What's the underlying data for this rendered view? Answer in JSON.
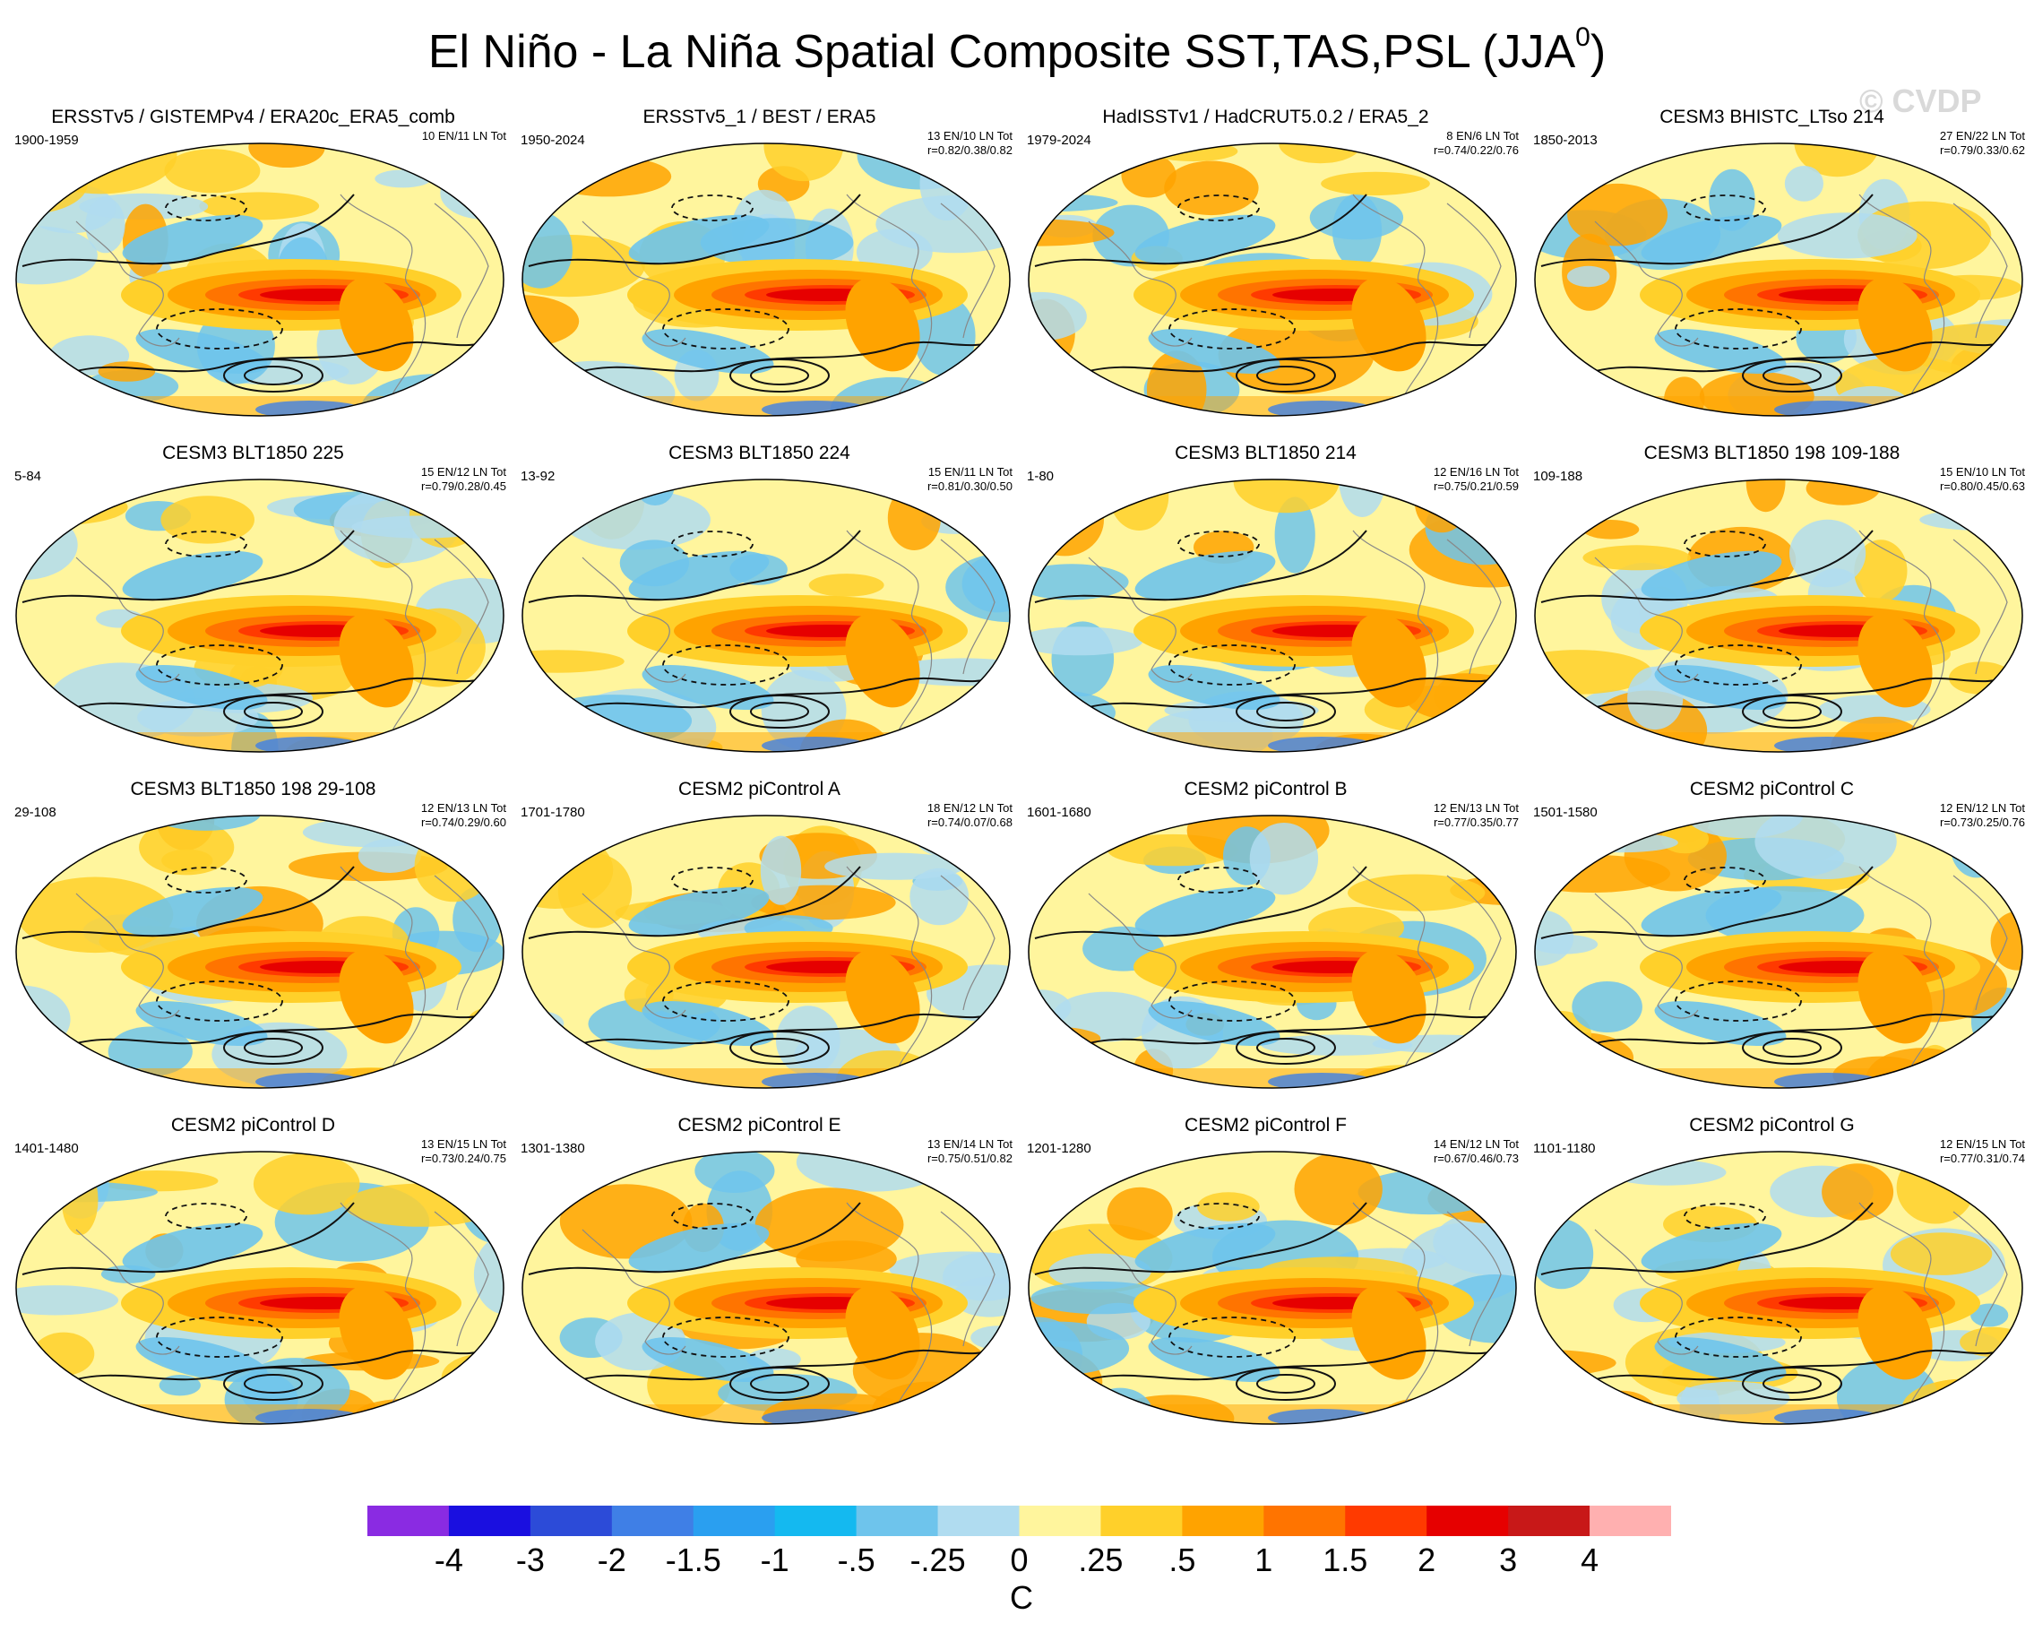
{
  "title_main": "El Niño - La Niña Spatial Composite SST,TAS,PSL (JJA",
  "title_sup": "0",
  "title_close": ")",
  "watermark": "© CVDP",
  "panels": [
    {
      "title": "ERSSTv5 / GISTEMPv4 / ERA20c_ERA5_comb",
      "years": "1900-1959",
      "counts": "10 EN/11 LN Tot",
      "r": ""
    },
    {
      "title": "ERSSTv5_1 / BEST / ERA5",
      "years": "1950-2024",
      "counts": "13 EN/10 LN Tot",
      "r": "r=0.82/0.38/0.82"
    },
    {
      "title": "HadISSTv1 / HadCRUT5.0.2 / ERA5_2",
      "years": "1979-2024",
      "counts": "8 EN/6 LN Tot",
      "r": "r=0.74/0.22/0.76"
    },
    {
      "title": "CESM3 BHISTC_LTso 214",
      "years": "1850-2013",
      "counts": "27 EN/22 LN Tot",
      "r": "r=0.79/0.33/0.62"
    },
    {
      "title": "CESM3 BLT1850 225",
      "years": "5-84",
      "counts": "15 EN/12 LN Tot",
      "r": "r=0.79/0.28/0.45"
    },
    {
      "title": "CESM3 BLT1850 224",
      "years": "13-92",
      "counts": "15 EN/11 LN Tot",
      "r": "r=0.81/0.30/0.50"
    },
    {
      "title": "CESM3 BLT1850 214",
      "years": "1-80",
      "counts": "12 EN/16 LN Tot",
      "r": "r=0.75/0.21/0.59"
    },
    {
      "title": "CESM3 BLT1850 198 109-188",
      "years": "109-188",
      "counts": "15 EN/10 LN Tot",
      "r": "r=0.80/0.45/0.63"
    },
    {
      "title": "CESM3 BLT1850 198 29-108",
      "years": "29-108",
      "counts": "12 EN/13 LN Tot",
      "r": "r=0.74/0.29/0.60"
    },
    {
      "title": "CESM2 piControl A",
      "years": "1701-1780",
      "counts": "18 EN/12 LN Tot",
      "r": "r=0.74/0.07/0.68"
    },
    {
      "title": "CESM2 piControl B",
      "years": "1601-1680",
      "counts": "12 EN/13 LN Tot",
      "r": "r=0.77/0.35/0.77"
    },
    {
      "title": "CESM2 piControl C",
      "years": "1501-1580",
      "counts": "12 EN/12 LN Tot",
      "r": "r=0.73/0.25/0.76"
    },
    {
      "title": "CESM2 piControl D",
      "years": "1401-1480",
      "counts": "13 EN/15 LN Tot",
      "r": "r=0.73/0.24/0.75"
    },
    {
      "title": "CESM2 piControl E",
      "years": "1301-1380",
      "counts": "13 EN/14 LN Tot",
      "r": "r=0.75/0.51/0.82"
    },
    {
      "title": "CESM2 piControl F",
      "years": "1201-1280",
      "counts": "14 EN/12 LN Tot",
      "r": "r=0.67/0.46/0.73"
    },
    {
      "title": "CESM2 piControl G",
      "years": "1101-1180",
      "counts": "12 EN/15 LN Tot",
      "r": "r=0.77/0.31/0.74"
    }
  ],
  "chart_data": {
    "type": "heatmap",
    "title": "El Niño - La Niña Spatial Composite SST,TAS,PSL (JJA0)",
    "projection": "global Robinson, Pacific-centered",
    "fields": [
      "SST/TAS shading (C)",
      "PSL contours (solid positive, dashed negative)"
    ],
    "colorbar": {
      "unit": "C",
      "tick_labels": [
        "-4",
        "-3",
        "-2",
        "-1.5",
        "-1",
        "-.5",
        "-.25",
        "0",
        ".25",
        ".5",
        "1",
        "1.5",
        "2",
        "3",
        "4"
      ],
      "colors": [
        "#8a2be2",
        "#1a0fe0",
        "#2c4bd8",
        "#3f7fe6",
        "#2a9ff0",
        "#14b9f0",
        "#6ec4ec",
        "#b0dcf0",
        "#fff59d",
        "#ffd02a",
        "#ffa300",
        "#ff7400",
        "#ff3a00",
        "#e60000",
        "#c81818",
        "#ffb0b0"
      ]
    }
  }
}
